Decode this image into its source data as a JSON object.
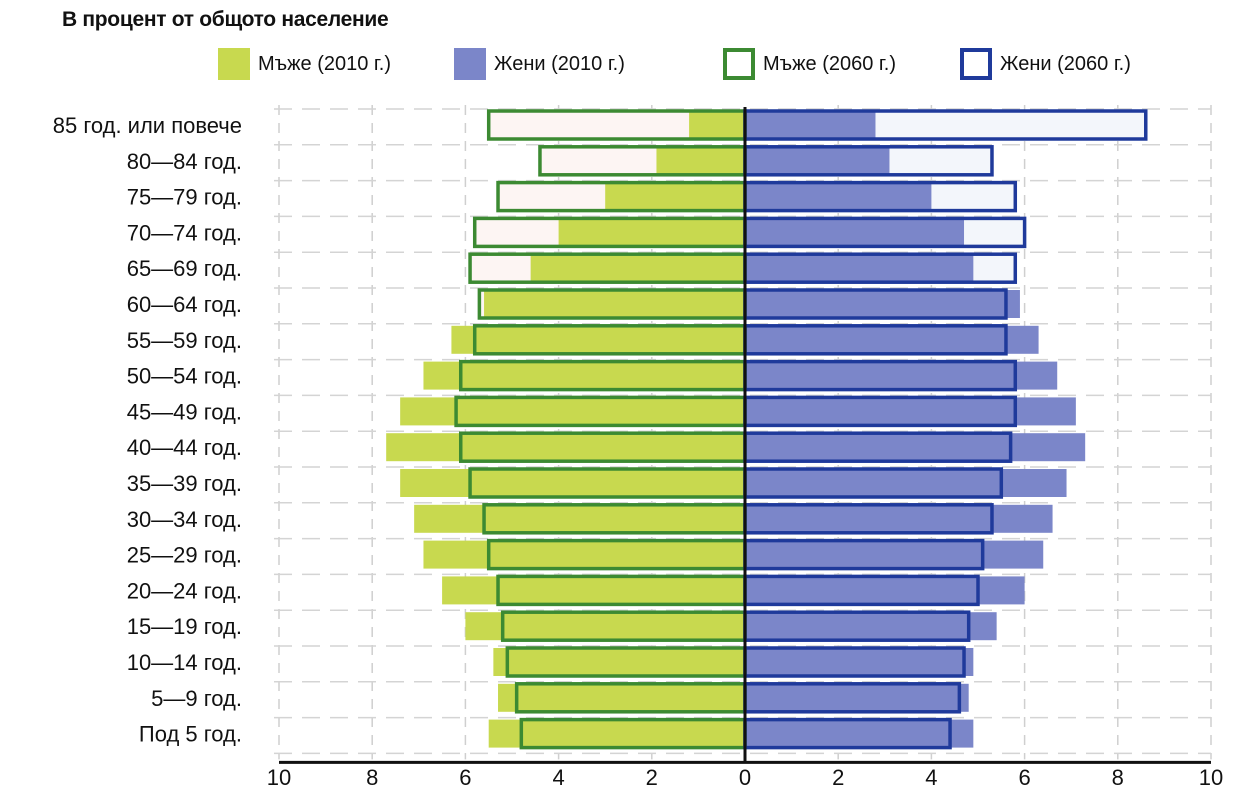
{
  "chart_data": {
    "type": "bar",
    "subtitle": "В процент от общото население",
    "categories": [
      "85 год. или повече",
      "80—84 год.",
      "75—79 год.",
      "70—74 год.",
      "65—69 год.",
      "60—64 год.",
      "55—59 год.",
      "50—54 год.",
      "45—49 год.",
      "40—44 год.",
      "35—39 год.",
      "30—34 год.",
      "25—29 год.",
      "20—24 год.",
      "15—19 год.",
      "10—14 год.",
      "5—9 год.",
      "Под 5 год."
    ],
    "series": [
      {
        "name": "Мъже (2010 г.)",
        "color": "#c8d94f",
        "style": "filled",
        "side": "left",
        "values": [
          1.2,
          1.9,
          3.0,
          4.0,
          4.6,
          5.6,
          6.3,
          6.9,
          7.4,
          7.7,
          7.4,
          7.1,
          6.9,
          6.5,
          6.0,
          5.4,
          5.3,
          5.5
        ]
      },
      {
        "name": "Жени (2010 г.)",
        "color": "#7b86c9",
        "style": "filled",
        "side": "right",
        "values": [
          2.8,
          3.1,
          4.0,
          4.7,
          4.9,
          5.9,
          6.3,
          6.7,
          7.1,
          7.3,
          6.9,
          6.6,
          6.4,
          6.0,
          5.4,
          4.9,
          4.8,
          4.9
        ]
      },
      {
        "name": "Мъже (2060 г.)",
        "color": "#3c8a32",
        "style": "outline",
        "side": "left",
        "values": [
          5.5,
          4.4,
          5.3,
          5.8,
          5.9,
          5.7,
          5.8,
          6.1,
          6.2,
          6.1,
          5.9,
          5.6,
          5.5,
          5.3,
          5.2,
          5.1,
          4.9,
          4.8
        ]
      },
      {
        "name": "Жени (2060 г.)",
        "color": "#1f3a9b",
        "style": "outline",
        "side": "right",
        "values": [
          8.6,
          5.3,
          5.8,
          6.0,
          5.8,
          5.6,
          5.6,
          5.8,
          5.8,
          5.7,
          5.5,
          5.3,
          5.1,
          5.0,
          4.8,
          4.7,
          4.6,
          4.4
        ]
      }
    ],
    "x_ticks": [
      "10",
      "8",
      "6",
      "4",
      "2",
      "0",
      "2",
      "4",
      "6",
      "8",
      "10"
    ],
    "xlim": [
      -10,
      10
    ],
    "grid": true,
    "legend_position": "top"
  }
}
